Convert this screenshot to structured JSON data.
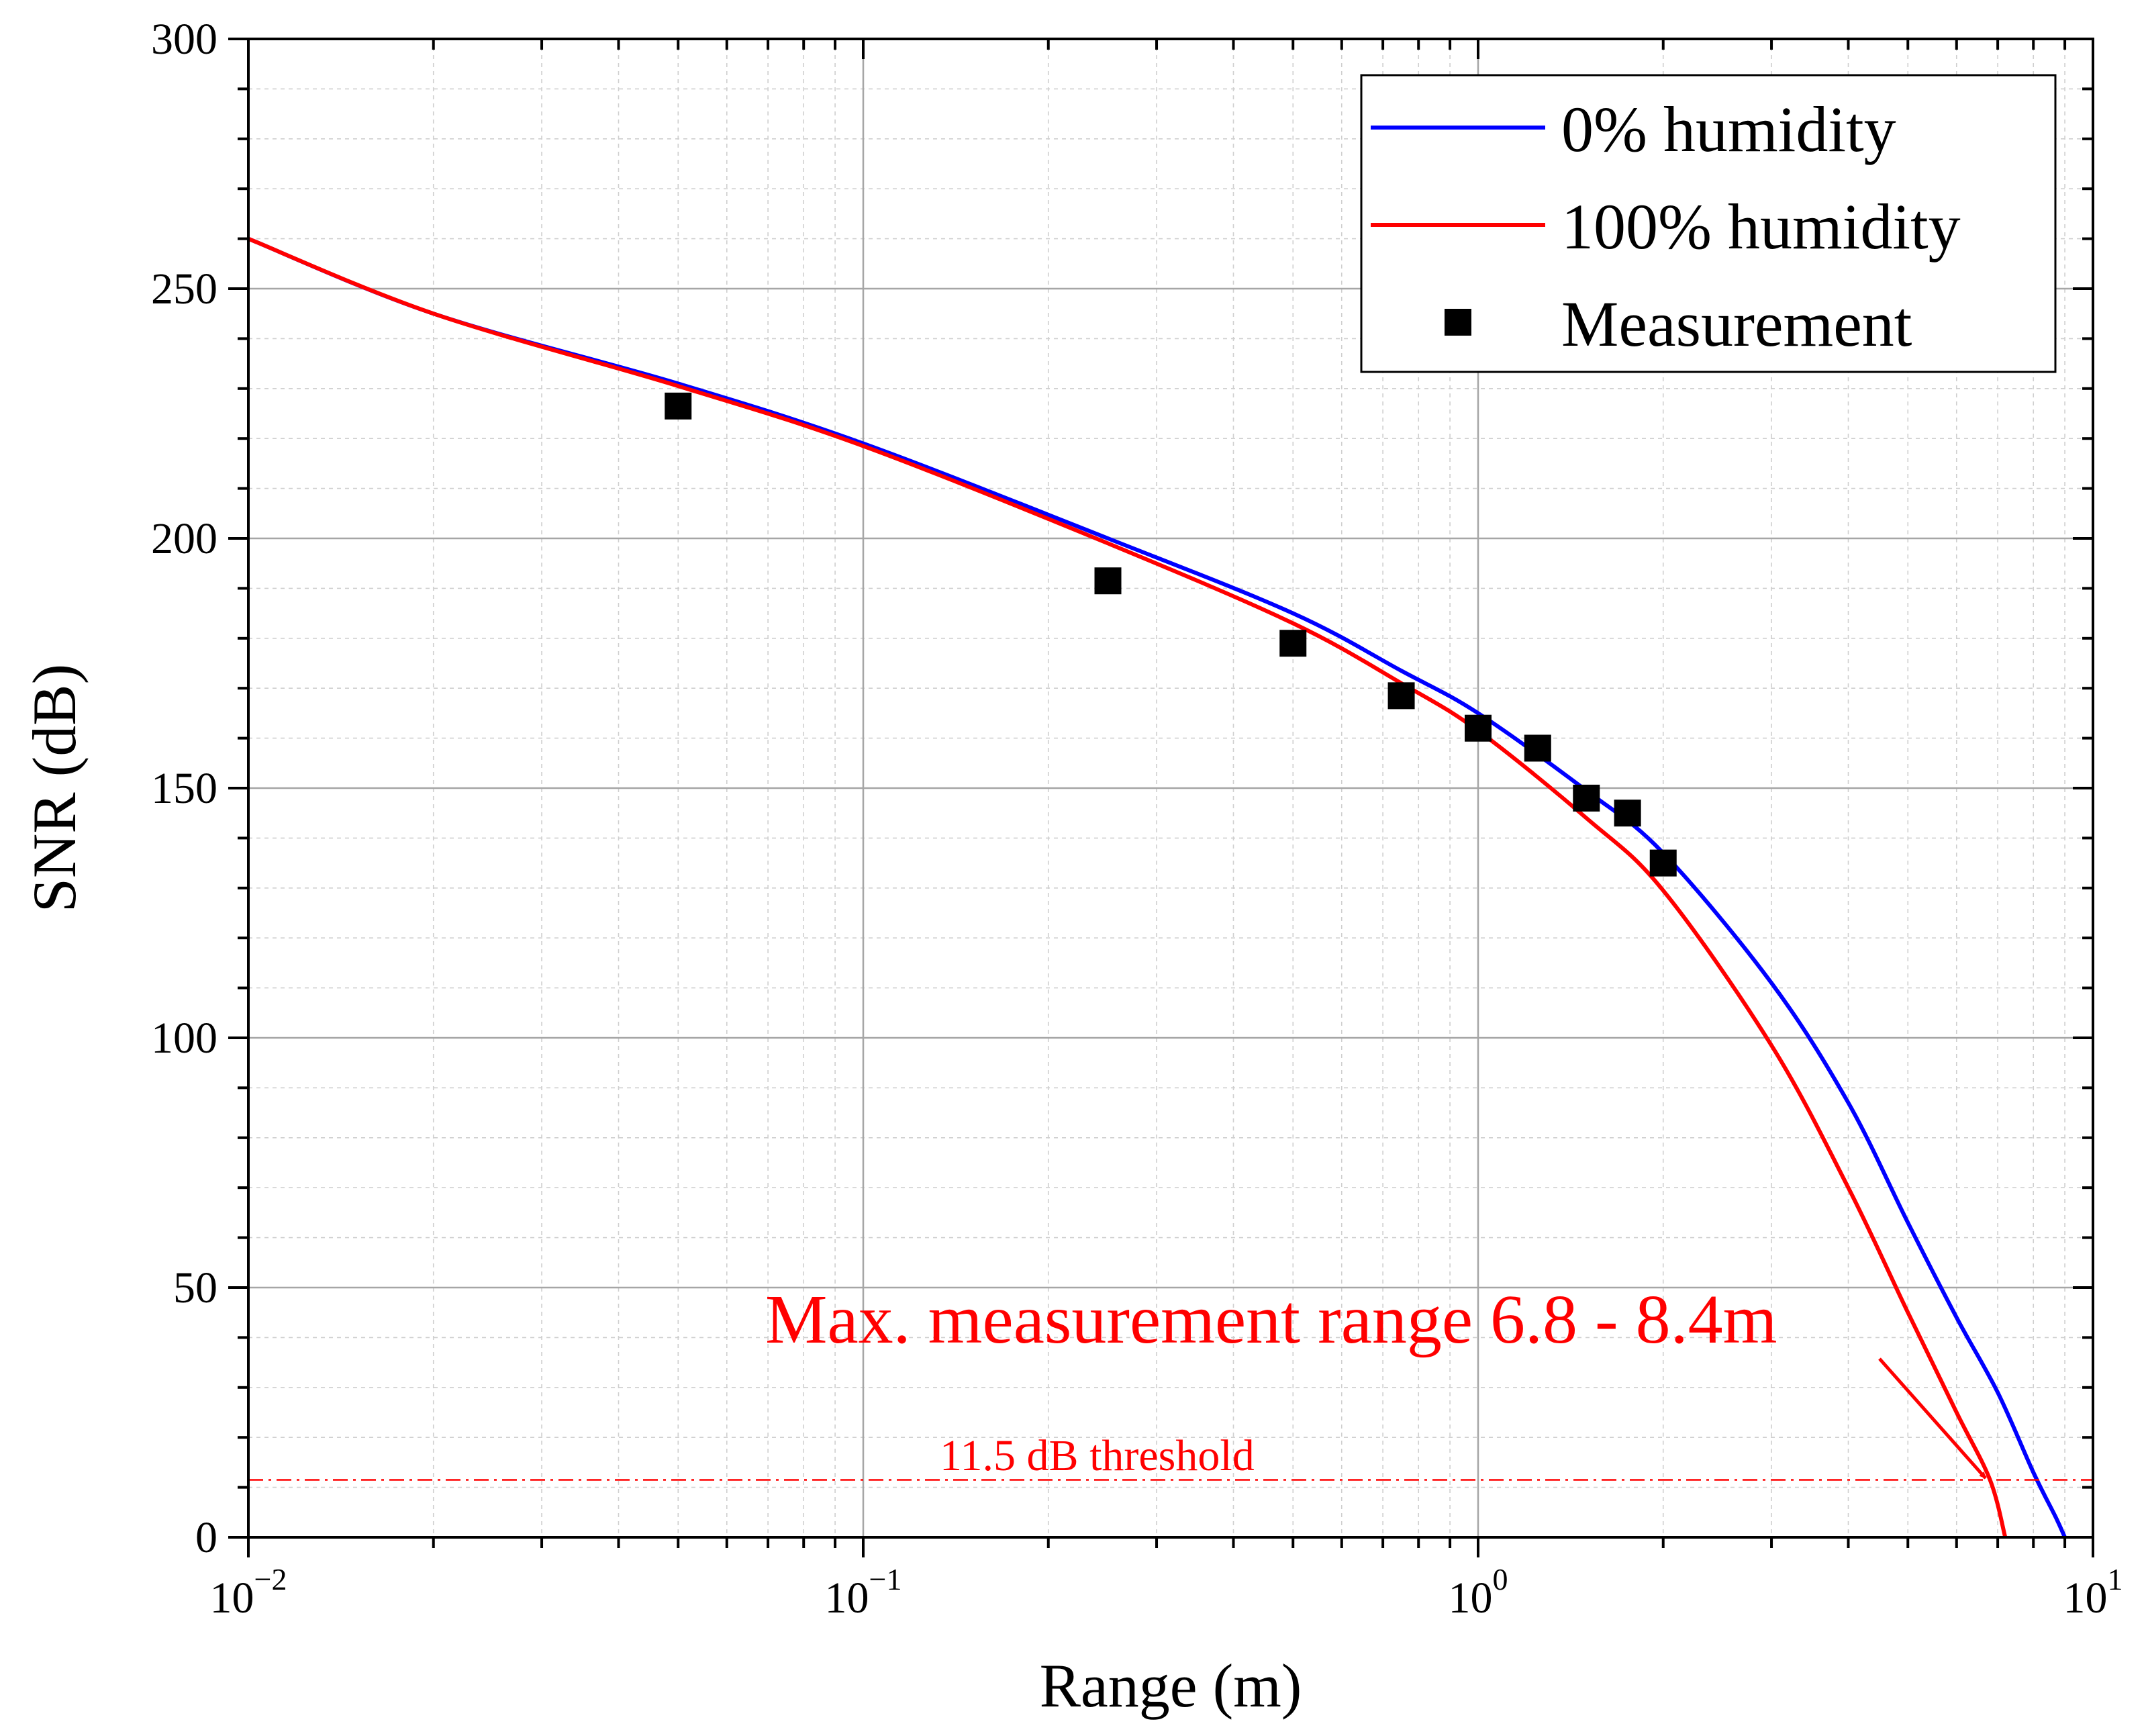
{
  "chart_data": {
    "type": "line",
    "xscale": "log",
    "xlim": [
      0.01,
      10
    ],
    "ylim": [
      0,
      300
    ],
    "xlabel": "Range (m)",
    "ylabel": "SNR (dB)",
    "x_ticks": [
      {
        "value": 0.01,
        "base": "10",
        "exp": "−2"
      },
      {
        "value": 0.1,
        "base": "10",
        "exp": "−1"
      },
      {
        "value": 1,
        "base": "10",
        "exp": "0"
      },
      {
        "value": 10,
        "base": "10",
        "exp": "1"
      }
    ],
    "y_ticks": [
      0,
      50,
      100,
      150,
      200,
      250,
      300
    ],
    "grid": true,
    "legend": {
      "placement": "top-right",
      "entries": [
        "0% humidity",
        "100% humidity",
        "Measurement"
      ]
    },
    "series": [
      {
        "name": "0% humidity",
        "type": "line",
        "color": "#0000ff",
        "x": [
          0.01,
          0.02,
          0.05,
          0.1,
          0.25,
          0.5,
          0.75,
          1.0,
          1.5,
          2.0,
          3.0,
          4.0,
          5.0,
          6.0,
          7.0,
          8.0,
          8.7,
          9.0
        ],
        "y": [
          260,
          245,
          231,
          219,
          200,
          185,
          173.5,
          165,
          149.5,
          137,
          111,
          87,
          63,
          44,
          29,
          13,
          4,
          0
        ]
      },
      {
        "name": "100% humidity",
        "type": "line",
        "color": "#ff0000",
        "x": [
          0.01,
          0.02,
          0.05,
          0.1,
          0.25,
          0.5,
          0.75,
          1.0,
          1.5,
          2.0,
          3.0,
          4.0,
          5.0,
          6.0,
          6.8,
          7.2
        ],
        "y": [
          260,
          245,
          230.5,
          218.5,
          199,
          183,
          171,
          161.5,
          144,
          129.5,
          98.5,
          70,
          45,
          25,
          11.5,
          0
        ]
      },
      {
        "name": "Measurement",
        "type": "scatter",
        "color": "#000000",
        "x": [
          0.05,
          0.25,
          0.5,
          0.75,
          1.0,
          1.25,
          1.5,
          1.75,
          2.0
        ],
        "y": [
          226.5,
          191.5,
          179,
          168.5,
          162,
          158,
          148,
          145,
          135
        ]
      }
    ],
    "threshold": {
      "value": 11.5,
      "label": "11.5 dB threshold",
      "color": "#ff0000"
    },
    "annotation": {
      "text": "Max. measurement range 6.8 - 8.4m",
      "arrow_to": {
        "x": 6.8,
        "y": 11.5
      },
      "color": "#ff0000"
    }
  }
}
